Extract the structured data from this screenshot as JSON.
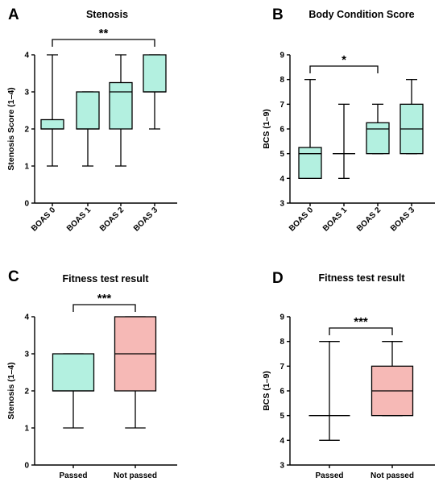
{
  "colors": {
    "teal": "#b3f0e0",
    "pink": "#f6b9b6",
    "stroke": "#000000"
  },
  "chart_data": [
    {
      "panel_label": "A",
      "type": "box",
      "title": "Stenosis",
      "ylabel": "Stenosis Score (1–4)",
      "ylim": [
        0,
        4
      ],
      "yticks": [
        "0",
        "1",
        "2",
        "3",
        "4"
      ],
      "rotate_categories": true,
      "categories": [
        "BOAS 0",
        "BOAS 1",
        "BOAS 2",
        "BOAS 3"
      ],
      "boxes": [
        {
          "min": 1,
          "q1": 2,
          "median": 2,
          "q3": 2.25,
          "max": 4,
          "color": "#b3f0e0"
        },
        {
          "min": 1,
          "q1": 2,
          "median": 2,
          "q3": 3,
          "max": 3,
          "color": "#b3f0e0"
        },
        {
          "min": 1,
          "q1": 2,
          "median": 3,
          "q3": 3.25,
          "max": 4,
          "color": "#b3f0e0"
        },
        {
          "min": 2,
          "q1": 3,
          "median": 3,
          "q3": 4,
          "max": 4,
          "color": "#b3f0e0"
        }
      ],
      "significance": {
        "from": 0,
        "to": 3,
        "label": "**"
      }
    },
    {
      "panel_label": "B",
      "type": "box",
      "title": "Body Condition Score",
      "ylabel": "BCS (1–9)",
      "ylim": [
        3,
        9
      ],
      "yticks": [
        "3",
        "4",
        "5",
        "6",
        "7",
        "8",
        "9"
      ],
      "rotate_categories": true,
      "categories": [
        "BOAS 0",
        "BOAS 1",
        "BOAS 2",
        "BOAS 3"
      ],
      "boxes": [
        {
          "min": 4,
          "q1": 4,
          "median": 5,
          "q3": 5.25,
          "max": 8,
          "color": "#b3f0e0"
        },
        {
          "min": 4,
          "q1": 5,
          "median": 5,
          "q3": 5,
          "max": 7,
          "color": "#b3f0e0"
        },
        {
          "min": 5,
          "q1": 5,
          "median": 6,
          "q3": 6.25,
          "max": 7,
          "color": "#b3f0e0"
        },
        {
          "min": 5,
          "q1": 5,
          "median": 6,
          "q3": 7,
          "max": 8,
          "color": "#b3f0e0"
        }
      ],
      "significance": {
        "from": 0,
        "to": 2,
        "label": "*"
      }
    },
    {
      "panel_label": "C",
      "type": "box",
      "title": "Fitness test result",
      "ylabel": "Stenosis (1–4)",
      "ylim": [
        0,
        4
      ],
      "yticks": [
        "0",
        "1",
        "2",
        "3",
        "4"
      ],
      "rotate_categories": false,
      "categories": [
        "Passed",
        "Not passed"
      ],
      "boxes": [
        {
          "min": 1,
          "q1": 2,
          "median": 2,
          "q3": 3,
          "max": 3,
          "color": "#b3f0e0"
        },
        {
          "min": 1,
          "q1": 2,
          "median": 3,
          "q3": 4,
          "max": 4,
          "color": "#f6b9b6"
        }
      ],
      "significance": {
        "from": 0,
        "to": 1,
        "label": "***"
      }
    },
    {
      "panel_label": "D",
      "type": "box",
      "title": "Fitness test result",
      "ylabel": "BCS (1–9)",
      "ylim": [
        3,
        9
      ],
      "yticks": [
        "3",
        "4",
        "5",
        "6",
        "7",
        "8",
        "9"
      ],
      "rotate_categories": false,
      "categories": [
        "Passed",
        "Not passed"
      ],
      "boxes": [
        {
          "min": 4,
          "q1": 5,
          "median": 5,
          "q3": 5,
          "max": 8,
          "color": "#b3f0e0"
        },
        {
          "min": 5,
          "q1": 5,
          "median": 6,
          "q3": 7,
          "max": 8,
          "color": "#f6b9b6"
        }
      ],
      "significance": {
        "from": 0,
        "to": 1,
        "label": "***"
      }
    }
  ]
}
